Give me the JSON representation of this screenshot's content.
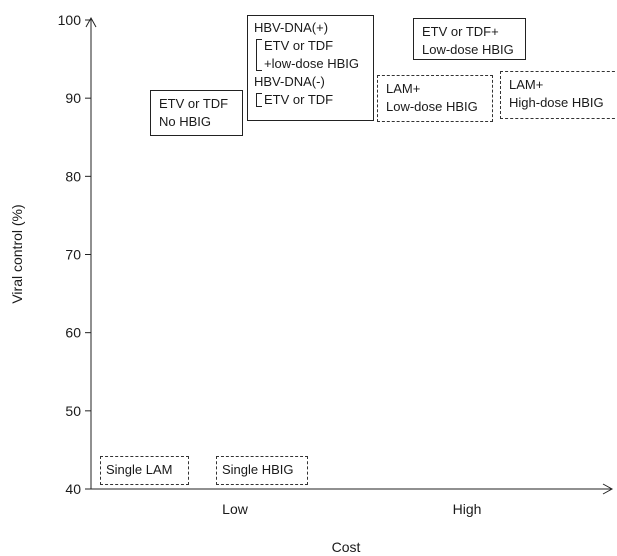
{
  "chart_data": {
    "type": "scatter",
    "title": "",
    "xlabel": "Cost",
    "ylabel": "Viral control (%)",
    "x_tick_labels": [
      "Low",
      "High"
    ],
    "yticks": [
      40,
      50,
      60,
      70,
      80,
      90,
      100
    ],
    "ylim": [
      40,
      100
    ],
    "grid": false,
    "legend": "none",
    "annotations": [
      {
        "id": "single-lam",
        "style": "dashed",
        "cost": "Low",
        "viral_control": 42,
        "lines": [
          "Single LAM"
        ]
      },
      {
        "id": "single-hbig",
        "style": "dashed",
        "cost": "Low",
        "viral_control": 42,
        "lines": [
          "Single HBIG"
        ]
      },
      {
        "id": "etv-no-hbig",
        "style": "solid",
        "cost": "Low",
        "viral_control": 90,
        "lines": [
          "ETV or TDF",
          "No HBIG"
        ]
      },
      {
        "id": "hbv-dna-strategy",
        "style": "solid",
        "cost": "Low",
        "viral_control": 95,
        "pos_header": "HBV-DNA(+)",
        "pos_lines": [
          "ETV or TDF",
          "+low-dose HBIG"
        ],
        "neg_header": "HBV-DNA(-)",
        "neg_lines": [
          "ETV or TDF"
        ]
      },
      {
        "id": "etv-lowdose-hbig",
        "style": "solid",
        "cost": "High",
        "viral_control": 97,
        "lines": [
          "ETV or TDF+",
          "Low-dose HBIG"
        ]
      },
      {
        "id": "lam-lowdose-hbig",
        "style": "dashed",
        "cost": "High",
        "viral_control": 90,
        "lines": [
          "LAM+",
          "Low-dose HBIG"
        ]
      },
      {
        "id": "lam-highdose-hbig",
        "style": "dashed",
        "cost": "High",
        "viral_control": 91,
        "lines": [
          "LAM+",
          "High-dose HBIG"
        ]
      }
    ]
  }
}
